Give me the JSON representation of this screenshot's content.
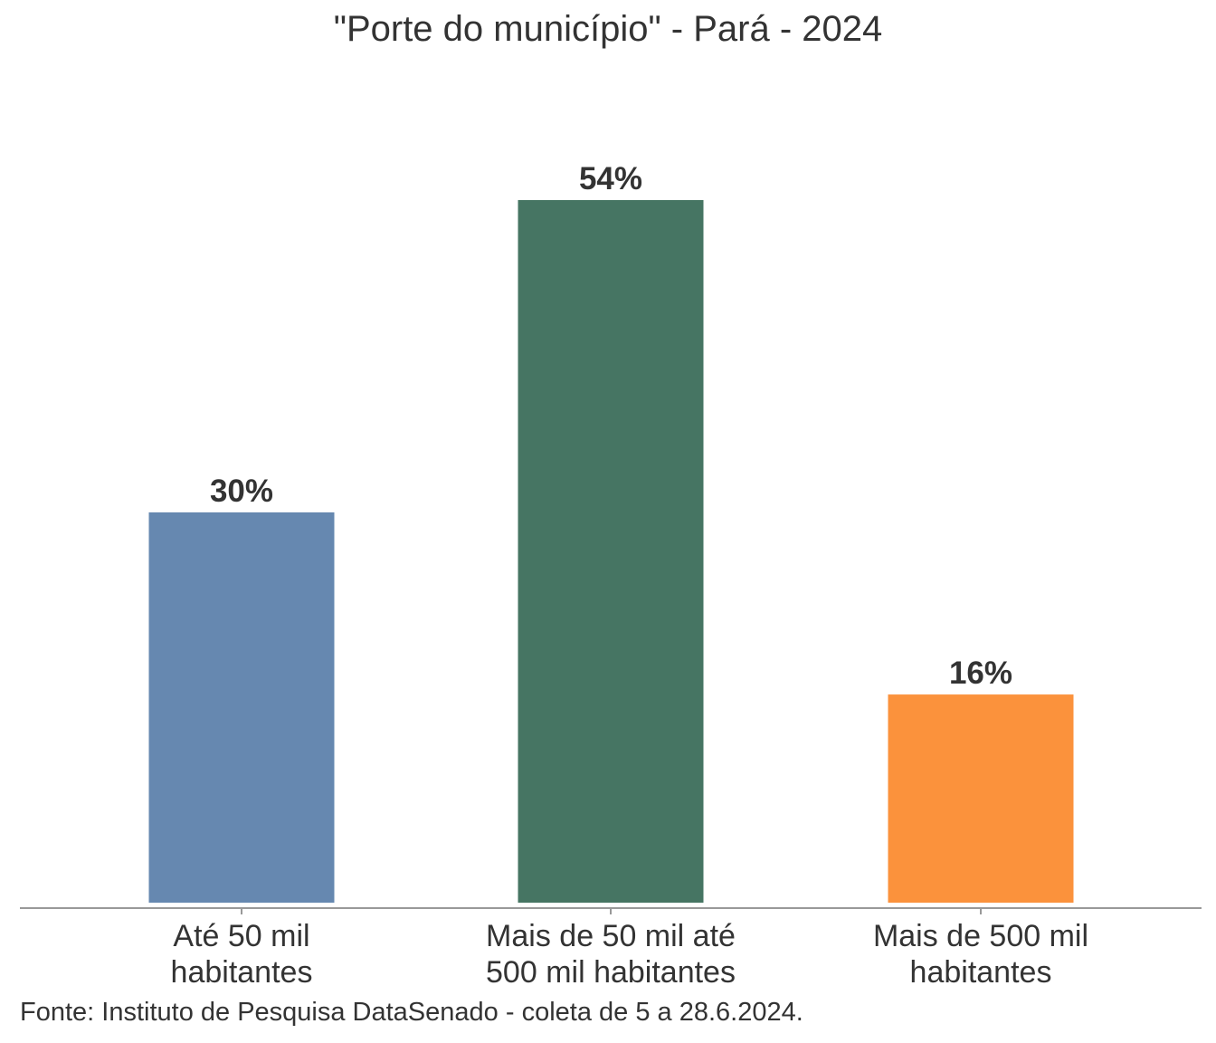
{
  "chart_data": {
    "type": "bar",
    "title": "\"Porte do município\" - Pará - 2024",
    "categories": [
      [
        "Até 50 mil",
        "habitantes"
      ],
      [
        "Mais de 50 mil até",
        "500 mil habitantes"
      ],
      [
        "Mais de 500 mil",
        "habitantes"
      ]
    ],
    "values": [
      30,
      54,
      16
    ],
    "data_labels": [
      "30%",
      "54%",
      "16%"
    ],
    "colors": [
      "#6688b0",
      "#467563",
      "#fb923c"
    ],
    "ylim": [
      0,
      54
    ],
    "grid": false,
    "legend": "none",
    "source": "Fonte: Instituto de Pesquisa DataSenado - coleta de 5 a 28.6.2024."
  }
}
